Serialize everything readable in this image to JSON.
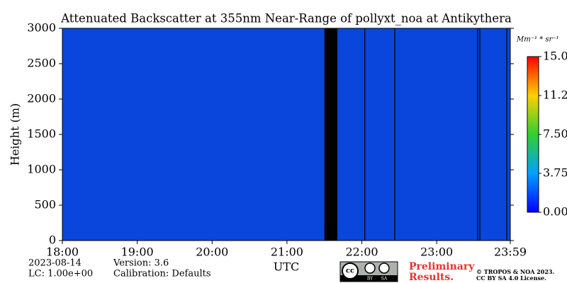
{
  "chart_data": {
    "type": "heatmap",
    "title": "Attenuated Backscatter at 355nm Near-Range of pollyxt_noa at Antikythera",
    "x_label": "UTC",
    "y_label": "Height (m)",
    "xlim": [
      0,
      5.983
    ],
    "xticks": [
      {
        "value": 0,
        "label": "18:00"
      },
      {
        "value": 1,
        "label": "19:00"
      },
      {
        "value": 2,
        "label": "20:00"
      },
      {
        "value": 3,
        "label": "21:00"
      },
      {
        "value": 4,
        "label": "22:00"
      },
      {
        "value": 5,
        "label": "23:00"
      },
      {
        "value": 5.983,
        "label": "23:59"
      }
    ],
    "ylim": [
      0,
      3000
    ],
    "yticks": [
      0,
      500,
      1000,
      1500,
      2000,
      2500,
      3000
    ],
    "background_value": 0.3,
    "color": "#0a46dc",
    "no_data": [
      [
        3.5,
        3.673
      ]
    ],
    "profile_lines": [
      4.04,
      4.44,
      5.547,
      5.576,
      5.936
    ],
    "colorbar": {
      "unit": "Mm⁻¹ * sr⁻¹",
      "lim": [
        0,
        15
      ],
      "ticks": [
        {
          "value": 0,
          "label": "0.00"
        },
        {
          "value": 3.75,
          "label": "3.75"
        },
        {
          "value": 7.5,
          "label": "7.50"
        },
        {
          "value": 11.25,
          "label": "11.25"
        },
        {
          "value": 15,
          "label": "15.00"
        }
      ]
    },
    "annotations": {
      "date": "2023-08-14",
      "lc": "LC: 1.00e+00",
      "version": "Version: 3.6",
      "calibration": "Calibration: Defaults",
      "preliminary": "Preliminary",
      "results": "Results.",
      "copyright": "© TROPOS & NOA 2023.",
      "license": "CC BY SA 4.0 License.",
      "badge_by": "BY",
      "badge_sa": "SA"
    }
  }
}
